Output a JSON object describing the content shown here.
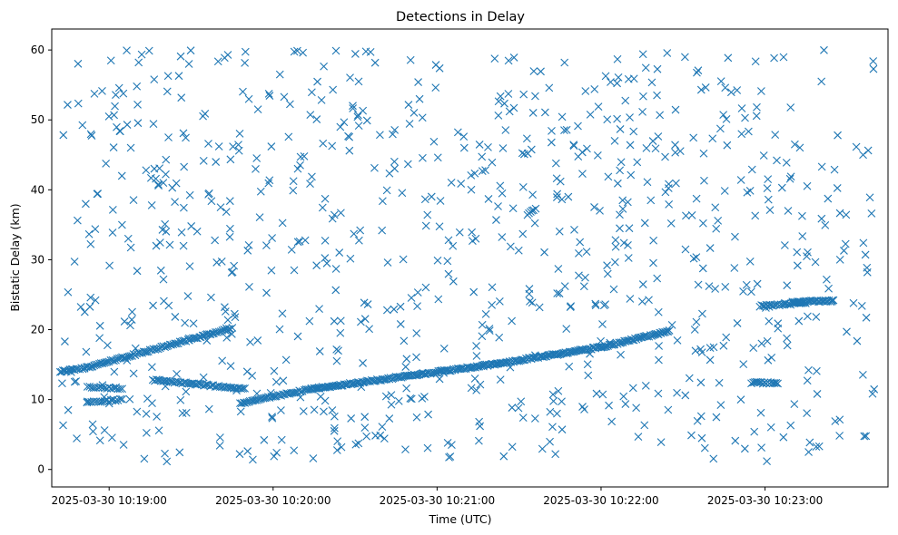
{
  "chart_data": {
    "type": "scatter",
    "title": "Detections in Delay",
    "xlabel": "Time (UTC)",
    "ylabel": "Bistatic Delay (km)",
    "x_unit": "UTC time",
    "xlim": [
      "2025-03-30 10:18:39",
      "2025-03-30 10:23:45"
    ],
    "ylim": [
      -2.5,
      63
    ],
    "x_ticks": [
      {
        "value": "2025-03-30 10:19:00",
        "label": "2025-03-30 10:19:00"
      },
      {
        "value": "2025-03-30 10:20:00",
        "label": "2025-03-30 10:20:00"
      },
      {
        "value": "2025-03-30 10:21:00",
        "label": "2025-03-30 10:21:00"
      },
      {
        "value": "2025-03-30 10:22:00",
        "label": "2025-03-30 10:22:00"
      },
      {
        "value": "2025-03-30 10:23:00",
        "label": "2025-03-30 10:23:00"
      }
    ],
    "y_ticks": [
      0,
      10,
      20,
      30,
      40,
      50,
      60
    ],
    "grid": false,
    "legend": "none",
    "marker": "x",
    "marker_color": "#1f77b4",
    "series": [
      {
        "name": "",
        "color": "#1f77b4",
        "marker": "x",
        "tracks": [
          {
            "start": "2025-03-30 10:18:42",
            "end": "2025-03-30 10:18:51",
            "y_start": 14.0,
            "y_end": 14.5,
            "step_s": 0.6
          },
          {
            "start": "2025-03-30 10:18:51",
            "end": "2025-03-30 10:19:45",
            "y_start": 14.5,
            "y_end": 20.2,
            "step_s": 0.6
          },
          {
            "start": "2025-03-30 10:19:16",
            "end": "2025-03-30 10:19:50",
            "y_start": 12.8,
            "y_end": 11.5,
            "step_s": 0.6
          },
          {
            "start": "2025-03-30 10:19:48",
            "end": "2025-03-30 10:20:14",
            "y_start": 9.5,
            "y_end": 11.5,
            "step_s": 0.6
          },
          {
            "start": "2025-03-30 10:20:14",
            "end": "2025-03-30 10:21:20",
            "y_start": 11.5,
            "y_end": 15.0,
            "step_s": 0.5
          },
          {
            "start": "2025-03-30 10:21:20",
            "end": "2025-03-30 10:22:00",
            "y_start": 15.0,
            "y_end": 17.5,
            "step_s": 0.5
          },
          {
            "start": "2025-03-30 10:22:00",
            "end": "2025-03-30 10:22:25",
            "y_start": 17.5,
            "y_end": 19.8,
            "step_s": 0.5
          },
          {
            "start": "2025-03-30 10:22:58",
            "end": "2025-03-30 10:23:15",
            "y_start": 23.4,
            "y_end": 23.8,
            "step_s": 0.6
          },
          {
            "start": "2025-03-30 10:23:10",
            "end": "2025-03-30 10:23:25",
            "y_start": 24.0,
            "y_end": 24.1,
            "step_s": 0.5
          },
          {
            "start": "2025-03-30 10:22:55",
            "end": "2025-03-30 10:23:05",
            "y_start": 12.4,
            "y_end": 12.4,
            "step_s": 0.6
          },
          {
            "start": "2025-03-30 10:18:52",
            "end": "2025-03-30 10:19:05",
            "y_start": 11.8,
            "y_end": 11.6,
            "step_s": 0.8
          },
          {
            "start": "2025-03-30 10:18:52",
            "end": "2025-03-30 10:19:05",
            "y_start": 9.6,
            "y_end": 10.0,
            "step_s": 0.8
          },
          {
            "start": "2025-03-30 10:21:33",
            "end": "2025-03-30 10:21:36",
            "y_start": 36.5,
            "y_end": 37.2,
            "step_s": 0.6
          }
        ],
        "clutter": {
          "count": 860,
          "start": "2025-03-30 10:18:42",
          "end": "2025-03-30 10:23:40",
          "y_min": 1.0,
          "y_max": 60.0
        }
      }
    ]
  }
}
